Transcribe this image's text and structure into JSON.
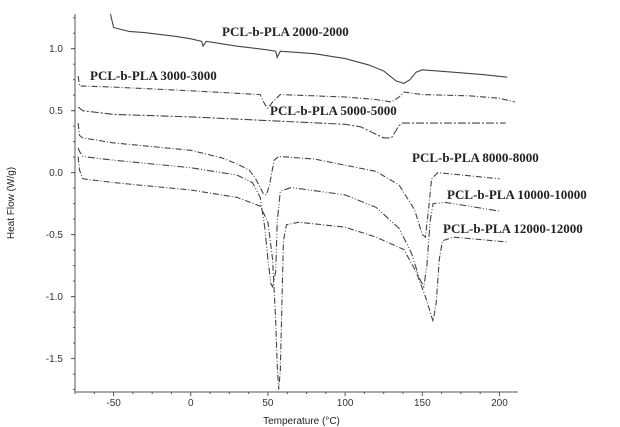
{
  "chart_data": {
    "type": "line",
    "title": "",
    "xlabel": "Temperature (°C)",
    "ylabel": "Heat Flow (W/g)",
    "xlim": [
      -75,
      212
    ],
    "ylim": [
      -1.77,
      1.28
    ],
    "xticks": [
      -50,
      0,
      50,
      100,
      150,
      200
    ],
    "yticks": [
      1.0,
      0.5,
      0.0,
      -0.5,
      -1.0,
      -1.5
    ],
    "ytick_labels": [
      "1.0",
      "0.5",
      "0.0",
      "-0.5",
      "-1.0",
      "-1.5"
    ],
    "grid": false,
    "series": [
      {
        "name": "PCL-b-PLA 2000-2000",
        "points": [
          [
            -52,
            1.28
          ],
          [
            -50,
            1.17
          ],
          [
            -40,
            1.14
          ],
          [
            -30,
            1.13
          ],
          [
            -10,
            1.1
          ],
          [
            0,
            1.08
          ],
          [
            7,
            1.06
          ],
          [
            8,
            1.02
          ],
          [
            10,
            1.06
          ],
          [
            30,
            1.02
          ],
          [
            50,
            0.99
          ],
          [
            55,
            0.98
          ],
          [
            56,
            0.93
          ],
          [
            58,
            0.98
          ],
          [
            80,
            0.96
          ],
          [
            100,
            0.92
          ],
          [
            115,
            0.87
          ],
          [
            125,
            0.82
          ],
          [
            133,
            0.74
          ],
          [
            138,
            0.72
          ],
          [
            142,
            0.75
          ],
          [
            146,
            0.81
          ],
          [
            150,
            0.83
          ],
          [
            170,
            0.81
          ],
          [
            190,
            0.79
          ],
          [
            205,
            0.77
          ]
        ]
      },
      {
        "name": "PCL-b-PLA 3000-3000",
        "points": [
          [
            -73,
            0.78
          ],
          [
            -72,
            0.7
          ],
          [
            -50,
            0.69
          ],
          [
            0,
            0.66
          ],
          [
            30,
            0.64
          ],
          [
            45,
            0.63
          ],
          [
            48,
            0.55
          ],
          [
            50,
            0.52
          ],
          [
            53,
            0.57
          ],
          [
            58,
            0.63
          ],
          [
            100,
            0.61
          ],
          [
            120,
            0.59
          ],
          [
            130,
            0.57
          ],
          [
            135,
            0.61
          ],
          [
            138,
            0.65
          ],
          [
            150,
            0.63
          ],
          [
            180,
            0.62
          ],
          [
            200,
            0.6
          ],
          [
            210,
            0.57
          ]
        ]
      },
      {
        "name": "PCL-b-PLA 5000-5000",
        "points": [
          [
            -73,
            0.53
          ],
          [
            -70,
            0.5
          ],
          [
            -50,
            0.47
          ],
          [
            0,
            0.45
          ],
          [
            50,
            0.42
          ],
          [
            100,
            0.39
          ],
          [
            110,
            0.37
          ],
          [
            120,
            0.31
          ],
          [
            125,
            0.28
          ],
          [
            130,
            0.28
          ],
          [
            132,
            0.32
          ],
          [
            135,
            0.38
          ],
          [
            137,
            0.4
          ],
          [
            150,
            0.4
          ],
          [
            180,
            0.4
          ],
          [
            204,
            0.4
          ]
        ]
      },
      {
        "name": "PCL-b-PLA 8000-8000",
        "points": [
          [
            -73,
            0.4
          ],
          [
            -72,
            0.3
          ],
          [
            -70,
            0.28
          ],
          [
            -50,
            0.24
          ],
          [
            0,
            0.18
          ],
          [
            20,
            0.12
          ],
          [
            30,
            0.07
          ],
          [
            38,
            0.02
          ],
          [
            42,
            -0.05
          ],
          [
            45,
            -0.12
          ],
          [
            47,
            -0.17
          ],
          [
            49,
            -0.18
          ],
          [
            51,
            -0.1
          ],
          [
            54,
            0.1
          ],
          [
            57,
            0.13
          ],
          [
            80,
            0.11
          ],
          [
            100,
            0.06
          ],
          [
            120,
            0.01
          ],
          [
            135,
            -0.1
          ],
          [
            145,
            -0.3
          ],
          [
            150,
            -0.5
          ],
          [
            152,
            -0.52
          ],
          [
            154,
            -0.3
          ],
          [
            156,
            -0.05
          ],
          [
            160,
            0.0
          ],
          [
            200,
            -0.05
          ]
        ]
      },
      {
        "name": "PCL-b-PLA 10000-10000",
        "points": [
          [
            -73,
            0.2
          ],
          [
            -72,
            0.17
          ],
          [
            -70,
            0.13
          ],
          [
            -50,
            0.1
          ],
          [
            0,
            0.04
          ],
          [
            30,
            -0.02
          ],
          [
            40,
            -0.08
          ],
          [
            45,
            -0.2
          ],
          [
            48,
            -0.45
          ],
          [
            50,
            -0.7
          ],
          [
            52,
            -0.9
          ],
          [
            53,
            -0.92
          ],
          [
            55,
            -0.8
          ],
          [
            56,
            -0.4
          ],
          [
            58,
            -0.15
          ],
          [
            65,
            -0.12
          ],
          [
            100,
            -0.18
          ],
          [
            120,
            -0.28
          ],
          [
            135,
            -0.45
          ],
          [
            143,
            -0.65
          ],
          [
            148,
            -0.85
          ],
          [
            151,
            -0.92
          ],
          [
            153,
            -0.75
          ],
          [
            155,
            -0.4
          ],
          [
            157,
            -0.25
          ],
          [
            165,
            -0.24
          ],
          [
            200,
            -0.31
          ]
        ]
      },
      {
        "name": "PCL-b-PLA 12000-12000",
        "points": [
          [
            -73,
            0.13
          ],
          [
            -72,
            0.02
          ],
          [
            -70,
            -0.05
          ],
          [
            -50,
            -0.08
          ],
          [
            0,
            -0.14
          ],
          [
            30,
            -0.2
          ],
          [
            45,
            -0.27
          ],
          [
            50,
            -0.4
          ],
          [
            53,
            -0.7
          ],
          [
            55,
            -1.2
          ],
          [
            56,
            -1.55
          ],
          [
            57,
            -1.75
          ],
          [
            58,
            -1.6
          ],
          [
            59,
            -1.1
          ],
          [
            60,
            -0.55
          ],
          [
            62,
            -0.42
          ],
          [
            70,
            -0.4
          ],
          [
            100,
            -0.44
          ],
          [
            120,
            -0.52
          ],
          [
            138,
            -0.62
          ],
          [
            146,
            -0.8
          ],
          [
            152,
            -1.0
          ],
          [
            155,
            -1.12
          ],
          [
            157,
            -1.2
          ],
          [
            159,
            -1.05
          ],
          [
            161,
            -0.7
          ],
          [
            163,
            -0.55
          ],
          [
            170,
            -0.52
          ],
          [
            205,
            -0.56
          ]
        ]
      }
    ]
  }
}
